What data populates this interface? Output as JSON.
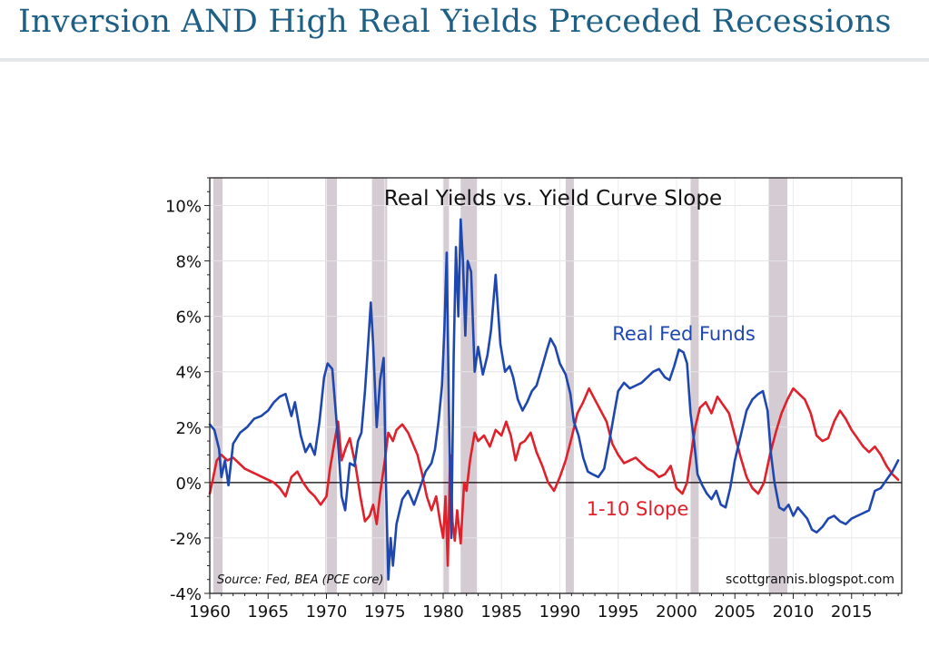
{
  "page": {
    "title": "Inversion AND High Real Yields Preceded Recessions"
  },
  "colors": {
    "real_fed_funds": "#1f47b0",
    "slope": "#e0202a",
    "recession": "#d5ccd3",
    "title": "#1e5f86"
  },
  "chart_data": {
    "type": "line",
    "title": "Real Yields vs. Yield Curve Slope",
    "xlabel": "",
    "ylabel": "",
    "xlim": [
      1960,
      2019.3
    ],
    "ylim": [
      -4,
      11
    ],
    "yticks": [
      -4,
      -2,
      0,
      2,
      4,
      6,
      8,
      10
    ],
    "ytick_labels": [
      "-4%",
      "-2%",
      "0%",
      "2%",
      "4%",
      "6%",
      "8%",
      "10%"
    ],
    "xticks": [
      1960,
      1965,
      1970,
      1975,
      1980,
      1985,
      1990,
      1995,
      2000,
      2005,
      2010,
      2015
    ],
    "xtick_labels": [
      "1960",
      "1965",
      "1970",
      "1975",
      "1980",
      "1985",
      "1990",
      "1995",
      "2000",
      "2005",
      "2010",
      "2015"
    ],
    "source": "Source: Fed, BEA (PCE core)",
    "credit": "scottgrannis.blogspot.com",
    "recessions": [
      [
        1960.3,
        1961.1
      ],
      [
        1969.9,
        1970.9
      ],
      [
        1973.9,
        1975.2
      ],
      [
        1980.0,
        1980.5
      ],
      [
        1981.5,
        1982.9
      ],
      [
        1990.5,
        1991.2
      ],
      [
        2001.2,
        2001.9
      ],
      [
        2007.9,
        2009.5
      ]
    ],
    "series": [
      {
        "name": "Real Fed Funds",
        "label": "Real Fed Funds",
        "points": [
          [
            1960.0,
            2.1
          ],
          [
            1960.4,
            1.9
          ],
          [
            1960.8,
            1.2
          ],
          [
            1961.0,
            0.2
          ],
          [
            1961.3,
            0.8
          ],
          [
            1961.6,
            -0.1
          ],
          [
            1962.0,
            1.4
          ],
          [
            1962.6,
            1.8
          ],
          [
            1963.2,
            2.0
          ],
          [
            1963.8,
            2.3
          ],
          [
            1964.4,
            2.4
          ],
          [
            1965.0,
            2.6
          ],
          [
            1965.5,
            2.9
          ],
          [
            1966.0,
            3.1
          ],
          [
            1966.5,
            3.2
          ],
          [
            1967.0,
            2.4
          ],
          [
            1967.3,
            2.9
          ],
          [
            1967.8,
            1.7
          ],
          [
            1968.2,
            1.1
          ],
          [
            1968.6,
            1.4
          ],
          [
            1969.0,
            1.0
          ],
          [
            1969.4,
            2.2
          ],
          [
            1969.8,
            3.8
          ],
          [
            1970.1,
            4.3
          ],
          [
            1970.5,
            4.1
          ],
          [
            1970.9,
            2.0
          ],
          [
            1971.3,
            -0.5
          ],
          [
            1971.6,
            -1.0
          ],
          [
            1972.0,
            0.7
          ],
          [
            1972.4,
            0.6
          ],
          [
            1972.7,
            1.5
          ],
          [
            1973.0,
            1.8
          ],
          [
            1973.3,
            3.3
          ],
          [
            1973.6,
            5.2
          ],
          [
            1973.8,
            6.5
          ],
          [
            1974.0,
            5.0
          ],
          [
            1974.3,
            2.0
          ],
          [
            1974.6,
            3.7
          ],
          [
            1974.9,
            4.5
          ],
          [
            1975.1,
            0.0
          ],
          [
            1975.3,
            -3.5
          ],
          [
            1975.5,
            -2.0
          ],
          [
            1975.7,
            -3.0
          ],
          [
            1976.0,
            -1.5
          ],
          [
            1976.5,
            -0.6
          ],
          [
            1977.0,
            -0.3
          ],
          [
            1977.5,
            -0.8
          ],
          [
            1978.0,
            -0.2
          ],
          [
            1978.5,
            0.4
          ],
          [
            1979.0,
            0.7
          ],
          [
            1979.3,
            1.2
          ],
          [
            1979.6,
            2.2
          ],
          [
            1979.9,
            3.5
          ],
          [
            1980.1,
            5.5
          ],
          [
            1980.3,
            8.3
          ],
          [
            1980.5,
            2.5
          ],
          [
            1980.7,
            -2.0
          ],
          [
            1980.9,
            4.6
          ],
          [
            1981.1,
            8.5
          ],
          [
            1981.3,
            6.0
          ],
          [
            1981.5,
            9.5
          ],
          [
            1981.7,
            8.0
          ],
          [
            1981.9,
            5.3
          ],
          [
            1982.1,
            8.0
          ],
          [
            1982.4,
            7.6
          ],
          [
            1982.7,
            4.0
          ],
          [
            1983.0,
            4.9
          ],
          [
            1983.4,
            3.9
          ],
          [
            1983.8,
            4.6
          ],
          [
            1984.1,
            5.5
          ],
          [
            1984.5,
            7.5
          ],
          [
            1984.9,
            5.0
          ],
          [
            1985.3,
            4.0
          ],
          [
            1985.7,
            4.2
          ],
          [
            1986.0,
            3.8
          ],
          [
            1986.4,
            3.0
          ],
          [
            1986.8,
            2.6
          ],
          [
            1987.2,
            2.9
          ],
          [
            1987.6,
            3.3
          ],
          [
            1988.0,
            3.5
          ],
          [
            1988.5,
            4.2
          ],
          [
            1988.9,
            4.8
          ],
          [
            1989.2,
            5.2
          ],
          [
            1989.6,
            4.9
          ],
          [
            1990.0,
            4.3
          ],
          [
            1990.5,
            3.9
          ],
          [
            1990.9,
            3.2
          ],
          [
            1991.2,
            2.2
          ],
          [
            1991.6,
            1.7
          ],
          [
            1992.0,
            0.9
          ],
          [
            1992.4,
            0.4
          ],
          [
            1992.8,
            0.3
          ],
          [
            1993.3,
            0.2
          ],
          [
            1993.8,
            0.5
          ],
          [
            1994.2,
            1.4
          ],
          [
            1994.7,
            2.6
          ],
          [
            1995.0,
            3.3
          ],
          [
            1995.5,
            3.6
          ],
          [
            1996.0,
            3.4
          ],
          [
            1996.5,
            3.5
          ],
          [
            1997.0,
            3.6
          ],
          [
            1997.5,
            3.8
          ],
          [
            1998.0,
            4.0
          ],
          [
            1998.5,
            4.1
          ],
          [
            1999.0,
            3.8
          ],
          [
            1999.4,
            3.7
          ],
          [
            1999.8,
            4.2
          ],
          [
            2000.2,
            4.8
          ],
          [
            2000.6,
            4.7
          ],
          [
            2000.9,
            4.3
          ],
          [
            2001.2,
            2.5
          ],
          [
            2001.5,
            1.5
          ],
          [
            2001.8,
            0.3
          ],
          [
            2002.2,
            -0.1
          ],
          [
            2002.6,
            -0.4
          ],
          [
            2003.0,
            -0.6
          ],
          [
            2003.4,
            -0.3
          ],
          [
            2003.8,
            -0.8
          ],
          [
            2004.2,
            -0.9
          ],
          [
            2004.6,
            -0.2
          ],
          [
            2005.0,
            0.8
          ],
          [
            2005.5,
            1.7
          ],
          [
            2006.0,
            2.6
          ],
          [
            2006.5,
            3.0
          ],
          [
            2007.0,
            3.2
          ],
          [
            2007.4,
            3.3
          ],
          [
            2007.8,
            2.6
          ],
          [
            2008.1,
            1.0
          ],
          [
            2008.4,
            0.0
          ],
          [
            2008.8,
            -0.9
          ],
          [
            2009.2,
            -1.0
          ],
          [
            2009.6,
            -0.8
          ],
          [
            2010.0,
            -1.2
          ],
          [
            2010.4,
            -0.9
          ],
          [
            2010.8,
            -1.1
          ],
          [
            2011.2,
            -1.3
          ],
          [
            2011.6,
            -1.7
          ],
          [
            2012.0,
            -1.8
          ],
          [
            2012.5,
            -1.6
          ],
          [
            2013.0,
            -1.3
          ],
          [
            2013.5,
            -1.2
          ],
          [
            2014.0,
            -1.4
          ],
          [
            2014.5,
            -1.5
          ],
          [
            2015.0,
            -1.3
          ],
          [
            2015.5,
            -1.2
          ],
          [
            2016.0,
            -1.1
          ],
          [
            2016.5,
            -1.0
          ],
          [
            2017.0,
            -0.3
          ],
          [
            2017.5,
            -0.2
          ],
          [
            2018.0,
            0.1
          ],
          [
            2018.5,
            0.4
          ],
          [
            2019.0,
            0.8
          ]
        ]
      },
      {
        "name": "1-10 Slope",
        "label": "1-10 Slope",
        "points": [
          [
            1960.0,
            -0.4
          ],
          [
            1960.3,
            0.2
          ],
          [
            1960.6,
            0.8
          ],
          [
            1961.0,
            1.0
          ],
          [
            1961.5,
            0.8
          ],
          [
            1962.0,
            0.9
          ],
          [
            1962.5,
            0.7
          ],
          [
            1963.0,
            0.5
          ],
          [
            1963.5,
            0.4
          ],
          [
            1964.0,
            0.3
          ],
          [
            1964.5,
            0.2
          ],
          [
            1965.0,
            0.1
          ],
          [
            1965.5,
            0.0
          ],
          [
            1966.0,
            -0.2
          ],
          [
            1966.5,
            -0.5
          ],
          [
            1967.0,
            0.2
          ],
          [
            1967.5,
            0.4
          ],
          [
            1968.0,
            0.0
          ],
          [
            1968.5,
            -0.3
          ],
          [
            1969.0,
            -0.5
          ],
          [
            1969.5,
            -0.8
          ],
          [
            1970.0,
            -0.5
          ],
          [
            1970.3,
            0.5
          ],
          [
            1970.7,
            1.5
          ],
          [
            1971.0,
            2.2
          ],
          [
            1971.3,
            0.8
          ],
          [
            1971.7,
            1.3
          ],
          [
            1972.0,
            1.6
          ],
          [
            1972.5,
            0.6
          ],
          [
            1972.9,
            -0.5
          ],
          [
            1973.3,
            -1.4
          ],
          [
            1973.7,
            -1.2
          ],
          [
            1974.0,
            -0.8
          ],
          [
            1974.3,
            -1.5
          ],
          [
            1974.6,
            -0.4
          ],
          [
            1975.0,
            0.8
          ],
          [
            1975.3,
            1.8
          ],
          [
            1975.7,
            1.5
          ],
          [
            1976.0,
            1.9
          ],
          [
            1976.5,
            2.1
          ],
          [
            1977.0,
            1.8
          ],
          [
            1977.4,
            1.4
          ],
          [
            1977.8,
            1.0
          ],
          [
            1978.2,
            0.3
          ],
          [
            1978.6,
            -0.5
          ],
          [
            1979.0,
            -1.0
          ],
          [
            1979.4,
            -0.5
          ],
          [
            1979.7,
            -1.3
          ],
          [
            1980.0,
            -2.0
          ],
          [
            1980.2,
            -0.5
          ],
          [
            1980.4,
            -3.0
          ],
          [
            1980.6,
            1.0
          ],
          [
            1980.8,
            -1.4
          ],
          [
            1981.0,
            -2.1
          ],
          [
            1981.2,
            -1.0
          ],
          [
            1981.5,
            -2.2
          ],
          [
            1981.8,
            0.0
          ],
          [
            1982.0,
            -0.3
          ],
          [
            1982.3,
            0.8
          ],
          [
            1982.7,
            1.8
          ],
          [
            1983.0,
            1.5
          ],
          [
            1983.5,
            1.7
          ],
          [
            1984.0,
            1.3
          ],
          [
            1984.5,
            1.9
          ],
          [
            1985.0,
            1.7
          ],
          [
            1985.4,
            2.2
          ],
          [
            1985.8,
            1.7
          ],
          [
            1986.2,
            0.8
          ],
          [
            1986.6,
            1.4
          ],
          [
            1987.0,
            1.5
          ],
          [
            1987.5,
            1.8
          ],
          [
            1988.0,
            1.1
          ],
          [
            1988.5,
            0.6
          ],
          [
            1989.0,
            0.0
          ],
          [
            1989.5,
            -0.3
          ],
          [
            1990.0,
            0.2
          ],
          [
            1990.5,
            0.8
          ],
          [
            1991.0,
            1.6
          ],
          [
            1991.5,
            2.5
          ],
          [
            1992.0,
            2.9
          ],
          [
            1992.5,
            3.4
          ],
          [
            1993.0,
            3.0
          ],
          [
            1993.5,
            2.6
          ],
          [
            1994.0,
            2.2
          ],
          [
            1994.5,
            1.4
          ],
          [
            1995.0,
            1.0
          ],
          [
            1995.5,
            0.7
          ],
          [
            1996.0,
            0.8
          ],
          [
            1996.5,
            0.9
          ],
          [
            1997.0,
            0.7
          ],
          [
            1997.5,
            0.5
          ],
          [
            1998.0,
            0.4
          ],
          [
            1998.5,
            0.2
          ],
          [
            1999.0,
            0.3
          ],
          [
            1999.5,
            0.6
          ],
          [
            2000.0,
            -0.2
          ],
          [
            2000.5,
            -0.4
          ],
          [
            2000.9,
            0.0
          ],
          [
            2001.2,
            0.9
          ],
          [
            2001.6,
            2.0
          ],
          [
            2002.0,
            2.7
          ],
          [
            2002.5,
            2.9
          ],
          [
            2003.0,
            2.5
          ],
          [
            2003.5,
            3.1
          ],
          [
            2004.0,
            2.8
          ],
          [
            2004.5,
            2.5
          ],
          [
            2005.0,
            1.7
          ],
          [
            2005.5,
            0.9
          ],
          [
            2006.0,
            0.2
          ],
          [
            2006.5,
            -0.2
          ],
          [
            2007.0,
            -0.4
          ],
          [
            2007.5,
            0.0
          ],
          [
            2008.0,
            1.0
          ],
          [
            2008.5,
            1.8
          ],
          [
            2009.0,
            2.5
          ],
          [
            2009.5,
            3.0
          ],
          [
            2010.0,
            3.4
          ],
          [
            2010.5,
            3.2
          ],
          [
            2011.0,
            3.0
          ],
          [
            2011.5,
            2.5
          ],
          [
            2012.0,
            1.7
          ],
          [
            2012.5,
            1.5
          ],
          [
            2013.0,
            1.6
          ],
          [
            2013.5,
            2.2
          ],
          [
            2014.0,
            2.6
          ],
          [
            2014.5,
            2.3
          ],
          [
            2015.0,
            1.9
          ],
          [
            2015.5,
            1.6
          ],
          [
            2016.0,
            1.3
          ],
          [
            2016.5,
            1.1
          ],
          [
            2017.0,
            1.3
          ],
          [
            2017.5,
            1.0
          ],
          [
            2018.0,
            0.6
          ],
          [
            2018.5,
            0.3
          ],
          [
            2019.0,
            0.1
          ]
        ]
      }
    ]
  }
}
